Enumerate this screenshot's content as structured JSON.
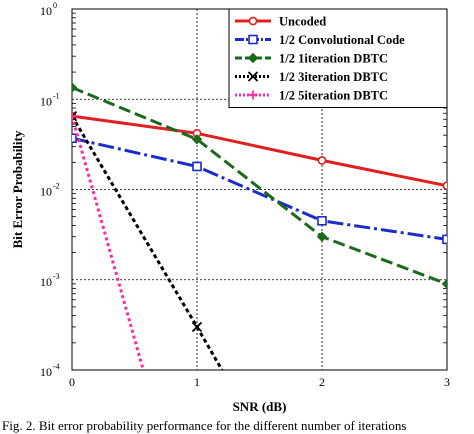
{
  "chart_data": {
    "type": "line",
    "xlabel": "SNR (dB)",
    "ylabel": "Bit Error Probability",
    "xlim": [
      0,
      3
    ],
    "ylim": [
      0.0001,
      1
    ],
    "yscale": "log",
    "grid": true,
    "legend_position": "top-right",
    "x_ticks": [
      "0",
      "1",
      "2",
      "3"
    ],
    "y_ticks": [
      {
        "base": "10",
        "exp": "0",
        "value": 1
      },
      {
        "base": "10",
        "exp": "-1",
        "value": 0.1
      },
      {
        "base": "10",
        "exp": "-2",
        "value": 0.01
      },
      {
        "base": "10",
        "exp": "-3",
        "value": 0.001
      },
      {
        "base": "10",
        "exp": "-4",
        "value": 0.0001
      }
    ],
    "series": [
      {
        "name": "Uncoded",
        "color": "#e02020",
        "dash": "",
        "marker": "circle",
        "x": [
          0,
          1,
          2,
          3
        ],
        "y": [
          0.065,
          0.042,
          0.021,
          0.011
        ]
      },
      {
        "name": "1/2 Convolutional Code",
        "color": "#1a2ccc",
        "dash": "16,4,3,4",
        "marker": "square",
        "x": [
          0,
          1,
          2,
          3
        ],
        "y": [
          0.037,
          0.018,
          0.0045,
          0.0028
        ]
      },
      {
        "name": "1/2 1iteration DBTC",
        "color": "#1a6a1a",
        "dash": "12,5",
        "marker": "diamond",
        "x": [
          0,
          1,
          2,
          3
        ],
        "y": [
          0.135,
          0.036,
          0.003,
          0.0009
        ]
      },
      {
        "name": "1/2 3iteration DBTC",
        "color": "#000000",
        "dash": "4,3",
        "marker": "x",
        "x": [
          0,
          1,
          1.2
        ],
        "y": [
          0.065,
          0.0003,
          0.0001
        ]
      },
      {
        "name": "1/2 5iteration DBTC",
        "color": "#ff2aa0",
        "dash": "3,3",
        "marker": "plus",
        "x": [
          0,
          0.57
        ],
        "y": [
          0.065,
          0.0001
        ]
      }
    ]
  },
  "caption": "Fig. 2. Bit error probability performance for the different number of iterations"
}
